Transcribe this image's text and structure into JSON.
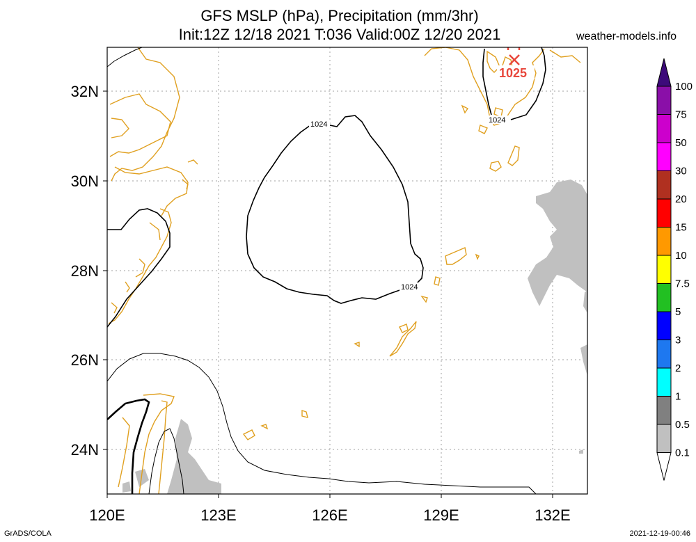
{
  "title_line1": "GFS MSLP (hPa), Precipitation (mm/3hr)",
  "title_line2": "Init:12Z 12/18 2021 T:036 Valid:00Z 12/20 2021",
  "site": "weather-models.info",
  "footer_left": "GrADS/COLA",
  "footer_right": "2021-12-19-00:46",
  "map": {
    "lon_range": [
      120,
      133
    ],
    "lat_range": [
      23,
      33
    ],
    "lon_ticks": [
      "120E",
      "123E",
      "126E",
      "129E",
      "132E"
    ],
    "lat_ticks": [
      "32N",
      "30N",
      "28N",
      "26N",
      "24N"
    ],
    "grid": "dotted",
    "isobar_labels": [
      "1024",
      "1024",
      "1024"
    ],
    "high_center": {
      "marker": "x",
      "label": "1025"
    },
    "coastline_color": "#e0a020",
    "precip_shading_color": "#c0c0c0"
  },
  "colorbar": {
    "labels": [
      "100",
      "75",
      "50",
      "30",
      "20",
      "15",
      "10",
      "7.5",
      "5",
      "3",
      "2",
      "1",
      "0.5",
      "0.1"
    ],
    "colors": [
      "#3d0a7a",
      "#8a0fa8",
      "#cc00cc",
      "#ff00ff",
      "#b03020",
      "#ff0000",
      "#ff9900",
      "#ffff00",
      "#22c022",
      "#0000ff",
      "#1e78f0",
      "#00ffff",
      "#808080",
      "#c0c0c0"
    ]
  }
}
